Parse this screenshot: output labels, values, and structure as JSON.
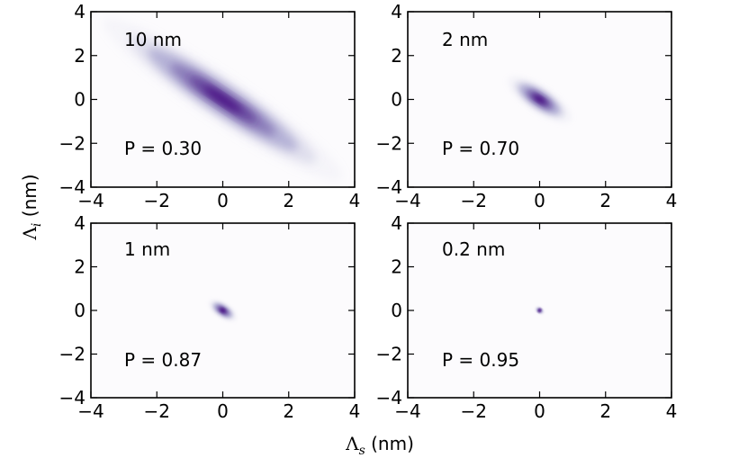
{
  "chart_data": {
    "type": "heatmap",
    "xlabel": "Λ",
    "xlabel_sub": "s",
    "xlabel_unit": " (nm)",
    "ylabel": "Λ",
    "ylabel_sub": "i",
    "ylabel_unit": " (nm)",
    "xlim": [
      -4,
      4
    ],
    "ylim": [
      -4,
      4
    ],
    "xticks": [
      "−4",
      "−2",
      "0",
      "2",
      "4"
    ],
    "yticks": [
      "−4",
      "−2",
      "0",
      "2",
      "4"
    ],
    "colormap": "Purples",
    "accent_color": "#3f007d",
    "panels": [
      {
        "label": "10 nm",
        "purity": "P = 0.30",
        "center": [
          0,
          0
        ],
        "anti_width": 0.5,
        "diag_width": 3.2
      },
      {
        "label": "2 nm",
        "purity": "P = 0.70",
        "center": [
          0,
          0
        ],
        "anti_width": 0.3,
        "diag_width": 0.85
      },
      {
        "label": "1 nm",
        "purity": "P = 0.87",
        "center": [
          0,
          0
        ],
        "anti_width": 0.18,
        "diag_width": 0.38
      },
      {
        "label": "0.2 nm",
        "purity": "P = 0.95",
        "center": [
          0,
          0
        ],
        "anti_width": 0.07,
        "diag_width": 0.12
      }
    ]
  }
}
